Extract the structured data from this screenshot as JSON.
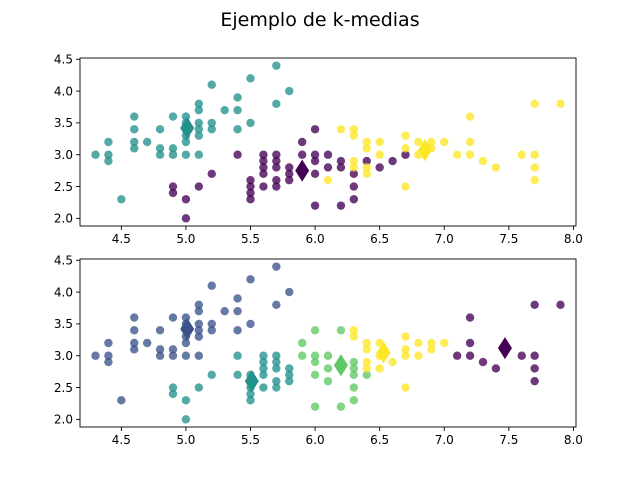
{
  "title": "Ejemplo de k-medias",
  "colors": {
    "viridis_3": [
      "#440154",
      "#21918c",
      "#fde725"
    ],
    "viridis_4": [
      "#440154",
      "#31688e",
      "#35b779",
      "#fde725"
    ],
    "viridis_5": [
      "#440154",
      "#3b528b",
      "#21918c",
      "#5ec962",
      "#fde725"
    ]
  },
  "chart_data": [
    {
      "type": "scatter",
      "title": "",
      "xlabel": "",
      "ylabel": "",
      "xlim": [
        4.18,
        8.02
      ],
      "ylim": [
        1.88,
        4.52
      ],
      "xticks": [
        "4.5",
        "5.0",
        "5.5",
        "6.0",
        "6.5",
        "7.0",
        "7.5",
        "8.0"
      ],
      "yticks": [
        "2.0",
        "2.5",
        "3.0",
        "3.5",
        "4.0",
        "4.5"
      ],
      "grid": false,
      "n_clusters": 3,
      "points": [
        [
          4.3,
          3.0,
          1
        ],
        [
          4.4,
          2.9,
          1
        ],
        [
          4.4,
          3.0,
          1
        ],
        [
          4.4,
          3.2,
          1
        ],
        [
          4.5,
          2.3,
          1
        ],
        [
          4.6,
          3.1,
          1
        ],
        [
          4.6,
          3.2,
          1
        ],
        [
          4.6,
          3.4,
          1
        ],
        [
          4.6,
          3.6,
          1
        ],
        [
          4.7,
          3.2,
          1
        ],
        [
          4.8,
          3.0,
          1
        ],
        [
          4.8,
          3.1,
          1
        ],
        [
          4.8,
          3.4,
          1
        ],
        [
          4.9,
          3.0,
          1
        ],
        [
          4.9,
          3.1,
          1
        ],
        [
          4.9,
          3.6,
          1
        ],
        [
          5.0,
          3.0,
          1
        ],
        [
          5.0,
          3.2,
          1
        ],
        [
          5.0,
          3.3,
          1
        ],
        [
          5.0,
          3.4,
          1
        ],
        [
          5.0,
          3.5,
          1
        ],
        [
          5.0,
          3.6,
          1
        ],
        [
          5.1,
          3.3,
          1
        ],
        [
          5.1,
          3.4,
          1
        ],
        [
          5.1,
          3.5,
          1
        ],
        [
          5.1,
          3.7,
          1
        ],
        [
          5.1,
          3.8,
          1
        ],
        [
          5.2,
          3.4,
          1
        ],
        [
          5.2,
          3.5,
          1
        ],
        [
          5.2,
          4.1,
          1
        ],
        [
          5.3,
          3.7,
          1
        ],
        [
          5.4,
          3.4,
          1
        ],
        [
          5.4,
          3.7,
          1
        ],
        [
          5.4,
          3.9,
          1
        ],
        [
          5.5,
          3.5,
          1
        ],
        [
          5.5,
          4.2,
          1
        ],
        [
          5.7,
          3.8,
          1
        ],
        [
          5.7,
          4.4,
          1
        ],
        [
          5.8,
          4.0,
          1
        ],
        [
          5.1,
          3.0,
          1
        ],
        [
          4.9,
          2.4,
          0
        ],
        [
          4.9,
          2.5,
          0
        ],
        [
          5.0,
          2.0,
          0
        ],
        [
          5.0,
          2.3,
          0
        ],
        [
          5.1,
          2.5,
          0
        ],
        [
          5.2,
          2.7,
          0
        ],
        [
          5.4,
          3.0,
          0
        ],
        [
          5.5,
          2.3,
          0
        ],
        [
          5.5,
          2.4,
          0
        ],
        [
          5.5,
          2.5,
          0
        ],
        [
          5.5,
          2.6,
          0
        ],
        [
          5.6,
          2.5,
          0
        ],
        [
          5.6,
          2.7,
          0
        ],
        [
          5.6,
          2.8,
          0
        ],
        [
          5.6,
          2.9,
          0
        ],
        [
          5.6,
          3.0,
          0
        ],
        [
          5.7,
          2.5,
          0
        ],
        [
          5.7,
          2.6,
          0
        ],
        [
          5.7,
          2.8,
          0
        ],
        [
          5.7,
          2.9,
          0
        ],
        [
          5.7,
          3.0,
          0
        ],
        [
          5.8,
          2.6,
          0
        ],
        [
          5.8,
          2.7,
          0
        ],
        [
          5.8,
          2.8,
          0
        ],
        [
          5.9,
          3.0,
          0
        ],
        [
          5.9,
          3.2,
          0
        ],
        [
          6.0,
          2.2,
          0
        ],
        [
          6.0,
          2.7,
          0
        ],
        [
          6.0,
          2.9,
          0
        ],
        [
          6.0,
          3.0,
          0
        ],
        [
          6.0,
          3.4,
          0
        ],
        [
          6.1,
          2.8,
          0
        ],
        [
          6.1,
          3.0,
          0
        ],
        [
          6.2,
          2.2,
          0
        ],
        [
          6.2,
          2.8,
          0
        ],
        [
          6.2,
          2.9,
          0
        ],
        [
          6.3,
          2.3,
          0
        ],
        [
          6.3,
          2.5,
          0
        ],
        [
          6.3,
          2.7,
          0
        ],
        [
          6.4,
          2.9,
          0
        ],
        [
          6.5,
          2.8,
          0
        ],
        [
          6.6,
          2.9,
          0
        ],
        [
          6.7,
          3.0,
          0
        ],
        [
          6.1,
          2.6,
          2
        ],
        [
          6.2,
          3.4,
          2
        ],
        [
          6.3,
          2.8,
          2
        ],
        [
          6.3,
          2.9,
          2
        ],
        [
          6.3,
          3.3,
          2
        ],
        [
          6.3,
          3.4,
          2
        ],
        [
          6.4,
          2.7,
          2
        ],
        [
          6.4,
          2.8,
          2
        ],
        [
          6.4,
          3.1,
          2
        ],
        [
          6.4,
          3.2,
          2
        ],
        [
          6.5,
          3.0,
          2
        ],
        [
          6.5,
          3.2,
          2
        ],
        [
          6.7,
          2.5,
          2
        ],
        [
          6.7,
          3.1,
          2
        ],
        [
          6.7,
          3.3,
          2
        ],
        [
          6.8,
          3.0,
          2
        ],
        [
          6.8,
          3.2,
          2
        ],
        [
          6.9,
          3.1,
          2
        ],
        [
          6.9,
          3.2,
          2
        ],
        [
          7.0,
          3.2,
          2
        ],
        [
          7.1,
          3.0,
          2
        ],
        [
          7.2,
          3.0,
          2
        ],
        [
          7.2,
          3.2,
          2
        ],
        [
          7.2,
          3.6,
          2
        ],
        [
          7.3,
          2.9,
          2
        ],
        [
          7.4,
          2.8,
          2
        ],
        [
          7.6,
          3.0,
          2
        ],
        [
          7.7,
          2.6,
          2
        ],
        [
          7.7,
          2.8,
          2
        ],
        [
          7.7,
          3.0,
          2
        ],
        [
          7.7,
          3.8,
          2
        ],
        [
          7.9,
          3.8,
          2
        ]
      ],
      "centroids": [
        [
          5.9,
          2.75,
          0
        ],
        [
          5.01,
          3.42,
          1
        ],
        [
          6.85,
          3.07,
          2
        ]
      ]
    },
    {
      "type": "scatter",
      "title": "",
      "xlabel": "",
      "ylabel": "",
      "xlim": [
        4.18,
        8.02
      ],
      "ylim": [
        1.88,
        4.52
      ],
      "xticks": [
        "4.5",
        "5.0",
        "5.5",
        "6.0",
        "6.5",
        "7.0",
        "7.5",
        "8.0"
      ],
      "yticks": [
        "2.0",
        "2.5",
        "3.0",
        "3.5",
        "4.0",
        "4.5"
      ],
      "grid": false,
      "n_clusters": 5,
      "points": [
        [
          4.3,
          3.0,
          1
        ],
        [
          4.4,
          2.9,
          1
        ],
        [
          4.4,
          3.0,
          1
        ],
        [
          4.4,
          3.2,
          1
        ],
        [
          4.5,
          2.3,
          1
        ],
        [
          4.6,
          3.1,
          1
        ],
        [
          4.6,
          3.2,
          1
        ],
        [
          4.6,
          3.4,
          1
        ],
        [
          4.6,
          3.6,
          1
        ],
        [
          4.7,
          3.2,
          1
        ],
        [
          4.8,
          3.0,
          1
        ],
        [
          4.8,
          3.1,
          1
        ],
        [
          4.8,
          3.4,
          1
        ],
        [
          4.9,
          3.0,
          1
        ],
        [
          4.9,
          3.1,
          1
        ],
        [
          4.9,
          3.6,
          1
        ],
        [
          5.0,
          3.0,
          1
        ],
        [
          5.0,
          3.2,
          1
        ],
        [
          5.0,
          3.3,
          1
        ],
        [
          5.0,
          3.4,
          1
        ],
        [
          5.0,
          3.5,
          1
        ],
        [
          5.0,
          3.6,
          1
        ],
        [
          5.1,
          3.3,
          1
        ],
        [
          5.1,
          3.4,
          1
        ],
        [
          5.1,
          3.5,
          1
        ],
        [
          5.1,
          3.7,
          1
        ],
        [
          5.1,
          3.8,
          1
        ],
        [
          5.2,
          3.4,
          1
        ],
        [
          5.2,
          3.5,
          1
        ],
        [
          5.2,
          4.1,
          1
        ],
        [
          5.3,
          3.7,
          1
        ],
        [
          5.4,
          3.4,
          1
        ],
        [
          5.4,
          3.7,
          1
        ],
        [
          5.4,
          3.9,
          1
        ],
        [
          5.5,
          3.5,
          1
        ],
        [
          5.5,
          4.2,
          1
        ],
        [
          5.7,
          3.8,
          1
        ],
        [
          5.7,
          4.4,
          1
        ],
        [
          5.8,
          4.0,
          1
        ],
        [
          5.1,
          3.0,
          1
        ],
        [
          4.9,
          2.4,
          2
        ],
        [
          4.9,
          2.5,
          2
        ],
        [
          5.0,
          2.0,
          2
        ],
        [
          5.0,
          2.3,
          2
        ],
        [
          5.1,
          2.5,
          2
        ],
        [
          5.2,
          2.7,
          2
        ],
        [
          5.4,
          3.0,
          2
        ],
        [
          5.5,
          2.3,
          2
        ],
        [
          5.5,
          2.4,
          2
        ],
        [
          5.5,
          2.5,
          2
        ],
        [
          5.5,
          2.6,
          2
        ],
        [
          5.6,
          2.5,
          2
        ],
        [
          5.6,
          2.7,
          2
        ],
        [
          5.6,
          2.8,
          2
        ],
        [
          5.6,
          2.9,
          2
        ],
        [
          5.6,
          3.0,
          2
        ],
        [
          5.7,
          2.5,
          2
        ],
        [
          5.7,
          2.6,
          2
        ],
        [
          5.7,
          2.8,
          2
        ],
        [
          5.7,
          2.9,
          2
        ],
        [
          5.7,
          3.0,
          2
        ],
        [
          5.8,
          2.6,
          2
        ],
        [
          5.8,
          2.7,
          2
        ],
        [
          5.8,
          2.8,
          2
        ],
        [
          5.4,
          2.7,
          2
        ],
        [
          5.5,
          2.7,
          2
        ],
        [
          5.9,
          3.0,
          3
        ],
        [
          5.9,
          3.2,
          3
        ],
        [
          6.0,
          2.2,
          3
        ],
        [
          6.0,
          2.7,
          3
        ],
        [
          6.0,
          2.9,
          3
        ],
        [
          6.0,
          3.0,
          3
        ],
        [
          6.0,
          3.4,
          3
        ],
        [
          6.1,
          2.8,
          3
        ],
        [
          6.1,
          3.0,
          3
        ],
        [
          6.2,
          2.2,
          3
        ],
        [
          6.2,
          2.8,
          3
        ],
        [
          6.2,
          2.9,
          3
        ],
        [
          6.3,
          2.3,
          3
        ],
        [
          6.3,
          2.5,
          3
        ],
        [
          6.3,
          2.7,
          3
        ],
        [
          6.1,
          2.6,
          3
        ],
        [
          6.2,
          3.4,
          3
        ],
        [
          6.3,
          2.8,
          3
        ],
        [
          6.3,
          2.9,
          3
        ],
        [
          6.4,
          2.7,
          3
        ],
        [
          6.3,
          3.3,
          4
        ],
        [
          6.3,
          3.4,
          4
        ],
        [
          6.4,
          2.8,
          4
        ],
        [
          6.4,
          3.1,
          4
        ],
        [
          6.4,
          3.2,
          4
        ],
        [
          6.5,
          2.8,
          4
        ],
        [
          6.5,
          3.0,
          4
        ],
        [
          6.5,
          3.2,
          4
        ],
        [
          6.6,
          2.9,
          4
        ],
        [
          6.7,
          2.5,
          4
        ],
        [
          6.7,
          3.0,
          4
        ],
        [
          6.7,
          3.1,
          4
        ],
        [
          6.7,
          3.3,
          4
        ],
        [
          6.8,
          3.0,
          4
        ],
        [
          6.8,
          3.2,
          4
        ],
        [
          6.9,
          3.1,
          4
        ],
        [
          6.9,
          3.2,
          4
        ],
        [
          7.0,
          3.2,
          4
        ],
        [
          6.4,
          2.9,
          4
        ],
        [
          7.1,
          3.0,
          0
        ],
        [
          7.2,
          3.0,
          0
        ],
        [
          7.2,
          3.2,
          0
        ],
        [
          7.2,
          3.6,
          0
        ],
        [
          7.3,
          2.9,
          0
        ],
        [
          7.4,
          2.8,
          0
        ],
        [
          7.6,
          3.0,
          0
        ],
        [
          7.7,
          2.6,
          0
        ],
        [
          7.7,
          2.8,
          0
        ],
        [
          7.7,
          3.0,
          0
        ],
        [
          7.7,
          3.8,
          0
        ],
        [
          7.9,
          3.8,
          0
        ]
      ],
      "centroids": [
        [
          7.47,
          3.12,
          0
        ],
        [
          5.01,
          3.42,
          1
        ],
        [
          5.51,
          2.6,
          2
        ],
        [
          6.2,
          2.85,
          3
        ],
        [
          6.53,
          3.05,
          4
        ]
      ]
    }
  ]
}
